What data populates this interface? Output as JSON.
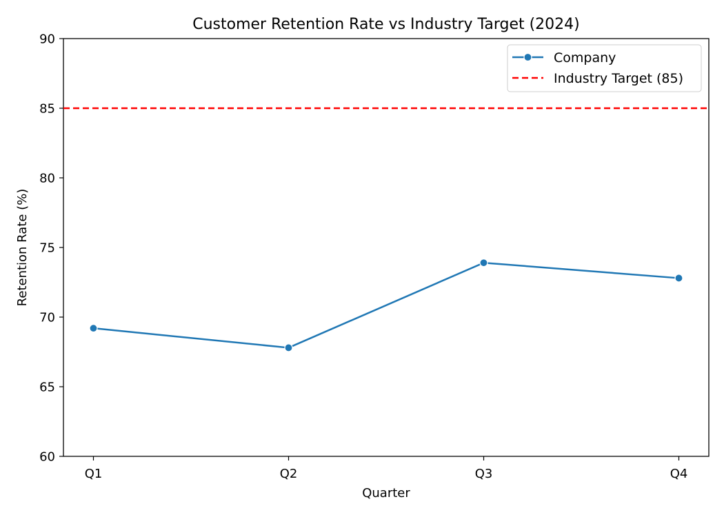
{
  "chart_data": {
    "type": "line",
    "title": "Customer Retention Rate vs Industry Target (2024)",
    "xlabel": "Quarter",
    "ylabel": "Retention Rate (%)",
    "categories": [
      "Q1",
      "Q2",
      "Q3",
      "Q4"
    ],
    "ylim": [
      60,
      90
    ],
    "yticks": [
      60,
      65,
      70,
      75,
      80,
      85,
      90
    ],
    "grid": false,
    "legend_position": "top-right",
    "series": [
      {
        "name": "Company",
        "values": [
          69.2,
          67.8,
          73.9,
          72.8
        ],
        "color": "#1f77b4",
        "marker": "circle",
        "line_style": "solid"
      }
    ],
    "reference_lines": [
      {
        "name": "Industry Target (85)",
        "value": 85,
        "color": "#ff0000",
        "line_style": "dashed"
      }
    ]
  }
}
